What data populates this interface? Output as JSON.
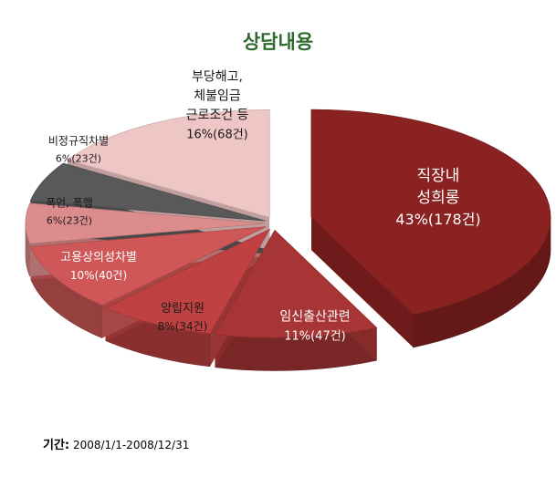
{
  "chart_data": {
    "type": "pie",
    "title": "상담내용",
    "unit": "건",
    "slices": [
      {
        "lines": [
          "직장내",
          "성희롱"
        ],
        "value_label": "43%(178건)",
        "percent": 43,
        "count": 178,
        "color": "#8b2222",
        "exploded": true
      },
      {
        "lines": [
          "임신출산관련"
        ],
        "value_label": "11%(47건)",
        "percent": 11,
        "count": 47,
        "color": "#a83535"
      },
      {
        "lines": [
          "양립지원"
        ],
        "value_label": "8%(34건)",
        "percent": 8,
        "count": 34,
        "color": "#bf4141"
      },
      {
        "lines": [
          "고용상의성차별"
        ],
        "value_label": "10%(40건)",
        "percent": 10,
        "count": 40,
        "color": "#cf5757"
      },
      {
        "lines": [
          "폭언, 폭행"
        ],
        "value_label": "6%(23건)",
        "percent": 6,
        "count": 23,
        "color": "#dc8c8c"
      },
      {
        "lines": [
          "비정규직차별"
        ],
        "value_label": "6%(23건)",
        "percent": 6,
        "count": 23,
        "color": "#595959"
      },
      {
        "lines": [
          "부당해고,",
          "체불임금",
          "근로조건 등"
        ],
        "value_label": "16%(68건)",
        "percent": 16,
        "count": 68,
        "color": "#efc6c6"
      }
    ]
  },
  "footer": {
    "label": "기간:",
    "period": "2008/1/1-2008/12/31"
  }
}
